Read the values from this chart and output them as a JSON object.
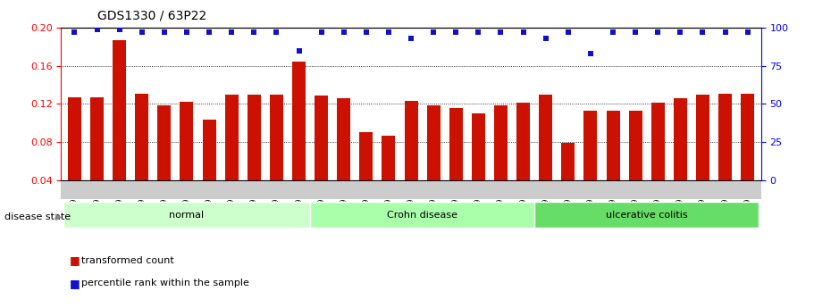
{
  "title": "GDS1330 / 63P22",
  "categories": [
    "GSM29595",
    "GSM29596",
    "GSM29597",
    "GSM29598",
    "GSM29599",
    "GSM29600",
    "GSM29601",
    "GSM29602",
    "GSM29603",
    "GSM29604",
    "GSM29605",
    "GSM29606",
    "GSM29607",
    "GSM29608",
    "GSM29609",
    "GSM29610",
    "GSM29611",
    "GSM29612",
    "GSM29613",
    "GSM29614",
    "GSM29615",
    "GSM29616",
    "GSM29617",
    "GSM29618",
    "GSM29619",
    "GSM29620",
    "GSM29621",
    "GSM29622",
    "GSM29623",
    "GSM29624",
    "GSM29625"
  ],
  "bar_values": [
    0.127,
    0.127,
    0.187,
    0.131,
    0.119,
    0.122,
    0.104,
    0.13,
    0.13,
    0.13,
    0.164,
    0.129,
    0.126,
    0.09,
    0.087,
    0.123,
    0.119,
    0.116,
    0.11,
    0.119,
    0.121,
    0.13,
    0.079,
    0.113,
    0.113,
    0.113,
    0.121,
    0.126,
    0.13,
    0.131,
    0.131
  ],
  "percentile_values": [
    97,
    99,
    99,
    97,
    97,
    97,
    97,
    97,
    97,
    97,
    85,
    97,
    97,
    97,
    97,
    93,
    97,
    97,
    97,
    97,
    97,
    93,
    97,
    83,
    97,
    97,
    97,
    97,
    97,
    97,
    97
  ],
  "bar_color": "#cc1100",
  "dot_color": "#1111cc",
  "ylim_left": [
    0.04,
    0.2
  ],
  "ylim_right": [
    0,
    100
  ],
  "yticks_left": [
    0.04,
    0.08,
    0.12,
    0.16,
    0.2
  ],
  "yticks_right": [
    0,
    25,
    50,
    75,
    100
  ],
  "groups": [
    {
      "label": "normal",
      "start": 0,
      "end": 11,
      "color": "#ccffcc"
    },
    {
      "label": "Crohn disease",
      "start": 11,
      "end": 21,
      "color": "#aaffaa"
    },
    {
      "label": "ulcerative colitis",
      "start": 21,
      "end": 31,
      "color": "#66dd66"
    }
  ],
  "legend_bar_label": "transformed count",
  "legend_dot_label": "percentile rank within the sample",
  "disease_state_label": "disease state"
}
